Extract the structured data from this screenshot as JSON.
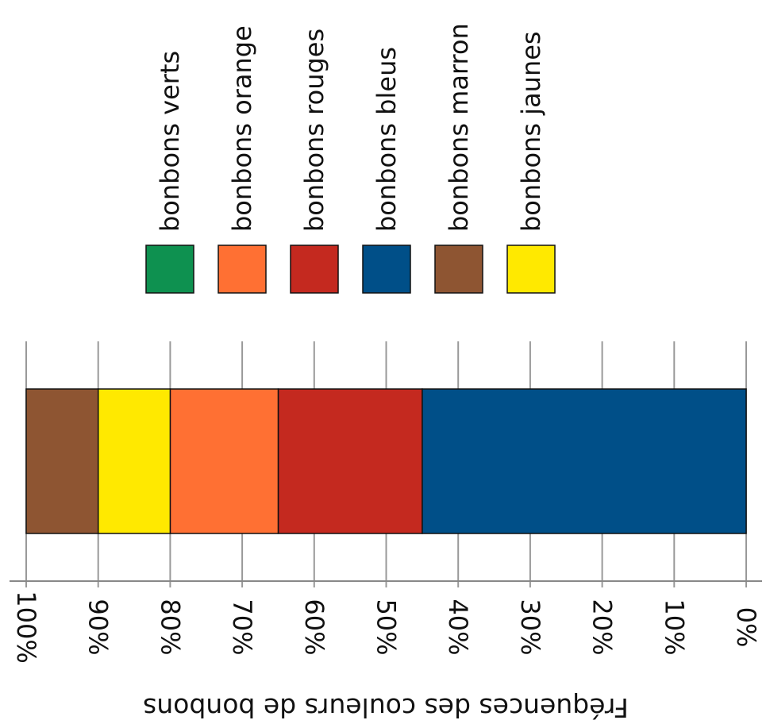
{
  "chart_data": {
    "type": "bar",
    "orientation": "horizontal-stacked-100",
    "axis_direction": "reversed",
    "xlabel": "Fréquences des couleurs de bonbons",
    "xlim": [
      0,
      100
    ],
    "ticks": [
      "0%",
      "10%",
      "20%",
      "30%",
      "40%",
      "50%",
      "60%",
      "70%",
      "80%",
      "90%",
      "100%"
    ],
    "grid": true,
    "legend_position": "top",
    "legend": [
      {
        "name": "bonbons verts",
        "color": "#0e9150"
      },
      {
        "name": "bonbons orange",
        "color": "#ff7033"
      },
      {
        "name": "bonbons rouges",
        "color": "#c4291f"
      },
      {
        "name": "bonbons bleus",
        "color": "#004f88"
      },
      {
        "name": "bonbons marron",
        "color": "#8e5532"
      },
      {
        "name": "bonbons jaunes",
        "color": "#ffe900"
      }
    ],
    "series": [
      {
        "name": "bonbons bleus",
        "value": 45,
        "color": "#004f88"
      },
      {
        "name": "bonbons rouges",
        "value": 20,
        "color": "#c4291f"
      },
      {
        "name": "bonbons orange",
        "value": 15,
        "color": "#ff7033"
      },
      {
        "name": "bonbons jaunes",
        "value": 10,
        "color": "#ffe900"
      },
      {
        "name": "bonbons marron",
        "value": 10,
        "color": "#8e5532"
      },
      {
        "name": "bonbons verts",
        "value": 0,
        "color": "#0e9150"
      }
    ]
  }
}
